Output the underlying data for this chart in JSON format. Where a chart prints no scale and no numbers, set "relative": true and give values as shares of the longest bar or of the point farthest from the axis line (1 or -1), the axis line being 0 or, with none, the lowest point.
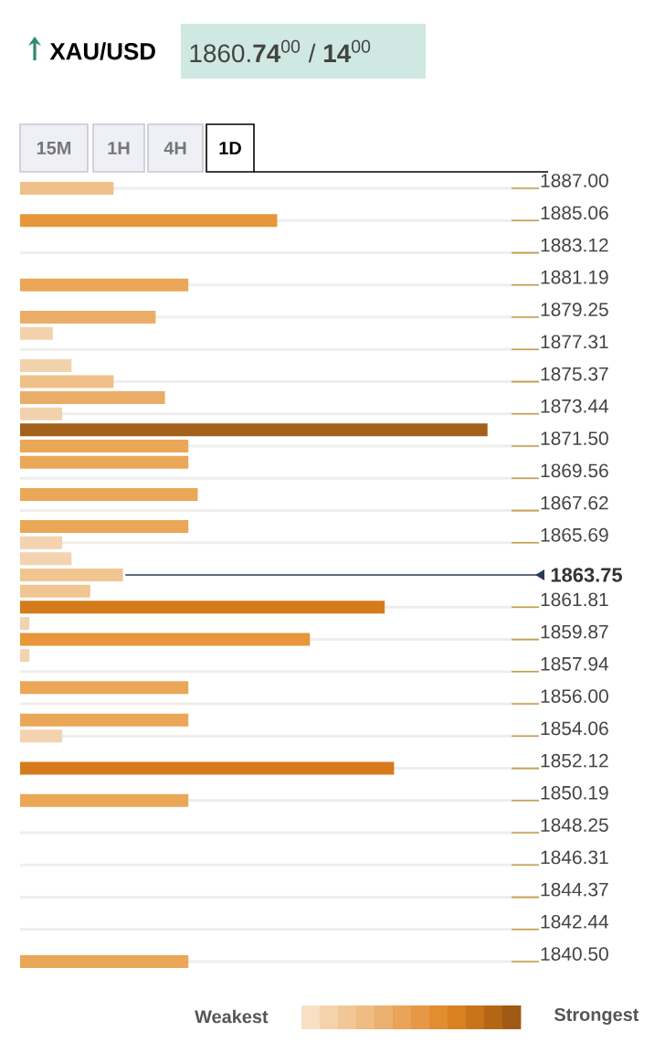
{
  "chart_data": {
    "type": "bar",
    "orientation": "horizontal",
    "relative": true,
    "title": "XAU/USD",
    "subtitle": "1860.**74**$^{00}$ / **14**$^{00}$",
    "x": [
      1887.0,
      1885.06,
      1881.19,
      1879.25,
      1878.28,
      1876.34,
      1875.37,
      1874.41,
      1873.44,
      1872.47,
      1871.5,
      1870.53,
      1868.59,
      1866.66,
      1865.69,
      1864.72,
      1863.75,
      1862.78,
      1861.81,
      1860.84,
      1859.87,
      1858.91,
      1856.97,
      1855.03,
      1854.06,
      1852.12,
      1850.19,
      1840.5
    ],
    "values": [
      0.2,
      0.55,
      0.36,
      0.29,
      0.07,
      0.11,
      0.2,
      0.31,
      0.09,
      1,
      0.36,
      0.36,
      0.38,
      0.36,
      0.09,
      0.11,
      0.22,
      0.15,
      0.78,
      0.02,
      0.62,
      0.02,
      0.36,
      0.36,
      0.09,
      0.8,
      0.36,
      0.36
    ],
    "colors": [
      "#efc08a",
      "#e8963a",
      "#eaa757",
      "#eaad68",
      "#f2d2ad",
      "#f2d2ad",
      "#efc08a",
      "#eaad68",
      "#f2d2ad",
      "#a3601a",
      "#eaa757",
      "#eaa757",
      "#eaa757",
      "#eaa757",
      "#f3d3b0",
      "#f3d3b0",
      "#f0c592",
      "#f0c592",
      "#d67b1c",
      "#f3d3b0",
      "#e8963a",
      "#f3d3b0",
      "#eaa757",
      "#eaa757",
      "#f3d3b0",
      "#d67b1c",
      "#eaa757",
      "#eaa757"
    ],
    "ylim": [
      1840.5,
      1887.0
    ],
    "yticks": [
      {
        "value": 1887.0,
        "label": "1887.00"
      },
      {
        "value": 1885.06,
        "label": "1885.06"
      },
      {
        "value": 1883.12,
        "label": "1883.12"
      },
      {
        "value": 1881.19,
        "label": "1881.19"
      },
      {
        "value": 1879.25,
        "label": "1879.25"
      },
      {
        "value": 1877.31,
        "label": "1877.31"
      },
      {
        "value": 1875.37,
        "label": "1875.37"
      },
      {
        "value": 1873.44,
        "label": "1873.44"
      },
      {
        "value": 1871.5,
        "label": "1871.50"
      },
      {
        "value": 1869.56,
        "label": "1869.56"
      },
      {
        "value": 1867.62,
        "label": "1867.62"
      },
      {
        "value": 1865.69,
        "label": "1865.69"
      },
      {
        "value": 1861.81,
        "label": "1861.81"
      },
      {
        "value": 1859.87,
        "label": "1859.87"
      },
      {
        "value": 1857.94,
        "label": "1857.94"
      },
      {
        "value": 1856.0,
        "label": "1856.00"
      },
      {
        "value": 1854.06,
        "label": "1854.06"
      },
      {
        "value": 1852.12,
        "label": "1852.12"
      },
      {
        "value": 1850.19,
        "label": "1850.19"
      },
      {
        "value": 1848.25,
        "label": "1848.25"
      },
      {
        "value": 1846.31,
        "label": "1846.31"
      },
      {
        "value": 1844.37,
        "label": "1844.37"
      },
      {
        "value": 1842.44,
        "label": "1842.44"
      },
      {
        "value": 1840.5,
        "label": "1840.50"
      }
    ],
    "ref_lines": [
      {
        "axis": "y",
        "value": 1863.75,
        "label": "1863.75",
        "color": "#2b3a55"
      }
    ],
    "grid": "y",
    "annotations": [
      "15M",
      "1H",
      "4H",
      "1D",
      "Weakest",
      "Strongest"
    ]
  }
}
